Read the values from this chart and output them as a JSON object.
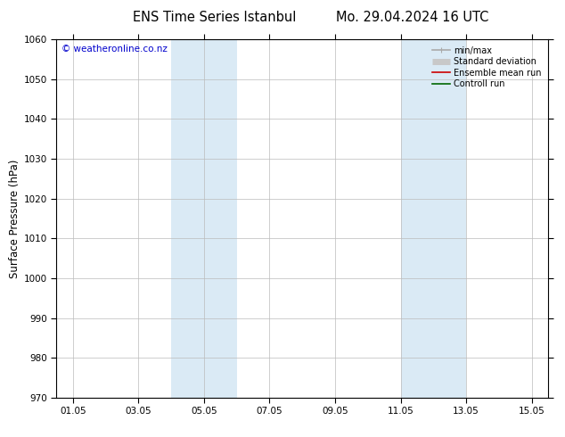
{
  "title_left": "ENS Time Series Istanbul",
  "title_right": "Mo. 29.04.2024 16 UTC",
  "ylabel": "Surface Pressure (hPa)",
  "ylim": [
    970,
    1060
  ],
  "yticks": [
    970,
    980,
    990,
    1000,
    1010,
    1020,
    1030,
    1040,
    1050,
    1060
  ],
  "xtick_labels": [
    "01.05",
    "03.05",
    "05.05",
    "07.05",
    "09.05",
    "11.05",
    "13.05",
    "15.05"
  ],
  "xtick_positions": [
    0,
    2,
    4,
    6,
    8,
    10,
    12,
    14
  ],
  "xlim": [
    -0.5,
    14.5
  ],
  "shaded_regions": [
    {
      "x_start": 3.0,
      "x_end": 5.0,
      "color": "#daeaf5"
    },
    {
      "x_start": 10.0,
      "x_end": 12.0,
      "color": "#daeaf5"
    }
  ],
  "watermark": "© weatheronline.co.nz",
  "watermark_color": "#0000cc",
  "legend_items": [
    {
      "label": "min/max",
      "color": "#aaaaaa",
      "lw": 1.2
    },
    {
      "label": "Standard deviation",
      "color": "#c8c8c8",
      "lw": 5
    },
    {
      "label": "Ensemble mean run",
      "color": "#cc0000",
      "lw": 1.2
    },
    {
      "label": "Controll run",
      "color": "#006600",
      "lw": 1.2
    }
  ],
  "grid_color": "#bbbbbb",
  "background_color": "#ffffff",
  "font_size_title": 10.5,
  "font_size_tick": 7.5,
  "font_size_ylabel": 8.5,
  "font_size_legend": 7,
  "font_size_watermark": 7.5,
  "figure_width": 6.34,
  "figure_height": 4.9,
  "dpi": 100
}
